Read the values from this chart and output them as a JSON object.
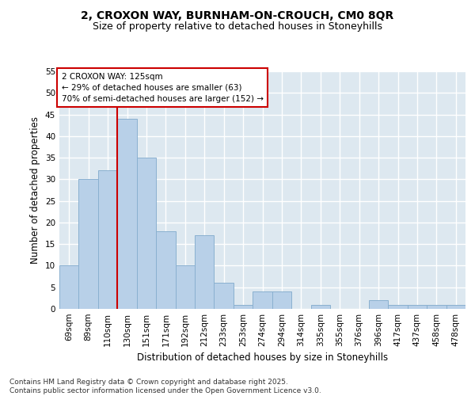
{
  "title_line1": "2, CROXON WAY, BURNHAM-ON-CROUCH, CM0 8QR",
  "title_line2": "Size of property relative to detached houses in Stoneyhills",
  "xlabel": "Distribution of detached houses by size in Stoneyhills",
  "ylabel": "Number of detached properties",
  "categories": [
    "69sqm",
    "89sqm",
    "110sqm",
    "130sqm",
    "151sqm",
    "171sqm",
    "192sqm",
    "212sqm",
    "233sqm",
    "253sqm",
    "274sqm",
    "294sqm",
    "314sqm",
    "335sqm",
    "355sqm",
    "376sqm",
    "396sqm",
    "417sqm",
    "437sqm",
    "458sqm",
    "478sqm"
  ],
  "values": [
    10,
    30,
    32,
    44,
    35,
    18,
    10,
    17,
    6,
    1,
    4,
    4,
    0,
    1,
    0,
    0,
    2,
    1,
    1,
    1,
    1
  ],
  "bar_color": "#b8d0e8",
  "bar_edge_color": "#8ab0d0",
  "annotation_box_text": "2 CROXON WAY: 125sqm\n← 29% of detached houses are smaller (63)\n70% of semi-detached houses are larger (152) →",
  "annotation_box_color": "#ffffff",
  "annotation_box_edge_color": "#cc0000",
  "vline_x_index": 3,
  "vline_color": "#cc0000",
  "ylim": [
    0,
    55
  ],
  "yticks": [
    0,
    5,
    10,
    15,
    20,
    25,
    30,
    35,
    40,
    45,
    50,
    55
  ],
  "plot_bg_color": "#dde8f0",
  "fig_bg_color": "#ffffff",
  "grid_color": "#ffffff",
  "footer_text": "Contains HM Land Registry data © Crown copyright and database right 2025.\nContains public sector information licensed under the Open Government Licence v3.0.",
  "title_fontsize": 10,
  "subtitle_fontsize": 9,
  "tick_fontsize": 7.5,
  "label_fontsize": 8.5,
  "annotation_fontsize": 7.5,
  "footer_fontsize": 6.5
}
